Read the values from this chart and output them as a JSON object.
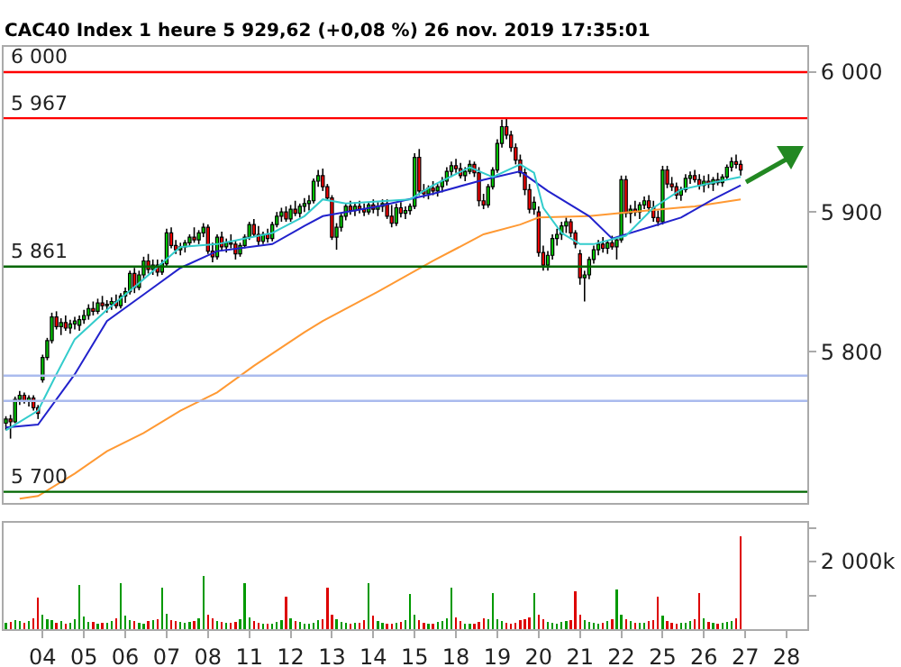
{
  "chart_data": [
    {
      "type": "candlestick",
      "title": "CAC40 Index 1 heure 5 929,62 (+0,08 %) 26 nov. 2019 17:35:01",
      "categories": [
        null,
        null,
        null,
        null,
        null,
        null,
        null,
        null,
        "04",
        null,
        null,
        null,
        null,
        null,
        null,
        null,
        null,
        "05",
        null,
        null,
        null,
        null,
        null,
        null,
        null,
        null,
        "06",
        null,
        null,
        null,
        null,
        null,
        null,
        null,
        null,
        "07",
        null,
        null,
        null,
        null,
        null,
        null,
        null,
        null,
        "08",
        null,
        null,
        null,
        null,
        null,
        null,
        null,
        null,
        "11",
        null,
        null,
        null,
        null,
        null,
        null,
        null,
        null,
        "12",
        null,
        null,
        null,
        null,
        null,
        null,
        null,
        null,
        "13",
        null,
        null,
        null,
        null,
        null,
        null,
        null,
        null,
        "14",
        null,
        null,
        null,
        null,
        null,
        null,
        null,
        null,
        "15",
        null,
        null,
        null,
        null,
        null,
        null,
        null,
        null,
        "18",
        null,
        null,
        null,
        null,
        null,
        null,
        null,
        null,
        "19",
        null,
        null,
        null,
        null,
        null,
        null,
        null,
        null,
        "20",
        null,
        null,
        null,
        null,
        null,
        null,
        null,
        null,
        "21",
        null,
        null,
        null,
        null,
        null,
        null,
        null,
        null,
        "22",
        null,
        null,
        null,
        null,
        null,
        null,
        null,
        null,
        "25",
        null,
        null,
        null,
        null,
        null,
        null,
        null,
        null,
        "26",
        null,
        null,
        null,
        null,
        null,
        null,
        null,
        null,
        "27",
        null,
        null,
        null,
        null,
        null,
        null,
        null,
        null,
        "28",
        null,
        null,
        null,
        null
      ],
      "ohlc": [
        [
          5749,
          5754,
          5744,
          5752
        ],
        [
          5752,
          5755,
          5738,
          5750
        ],
        [
          5750,
          5768,
          5749,
          5766
        ],
        [
          5766,
          5772,
          5762,
          5769
        ],
        [
          5769,
          5771,
          5763,
          5765
        ],
        [
          5765,
          5769,
          5761,
          5767
        ],
        [
          5767,
          5769,
          5758,
          5760
        ],
        [
          5760,
          5762,
          5752,
          5756
        ],
        [
          5780,
          5798,
          5778,
          5796
        ],
        [
          5796,
          5810,
          5794,
          5808
        ],
        [
          5808,
          5828,
          5806,
          5825
        ],
        [
          5825,
          5829,
          5816,
          5818
        ],
        [
          5818,
          5824,
          5812,
          5821
        ],
        [
          5821,
          5826,
          5815,
          5817
        ],
        [
          5817,
          5823,
          5813,
          5820
        ],
        [
          5820,
          5825,
          5816,
          5822
        ],
        [
          5819,
          5826,
          5815,
          5823
        ],
        [
          5823,
          5830,
          5820,
          5826
        ],
        [
          5826,
          5834,
          5823,
          5831
        ],
        [
          5831,
          5836,
          5826,
          5829
        ],
        [
          5829,
          5838,
          5827,
          5835
        ],
        [
          5835,
          5840,
          5830,
          5833
        ],
        [
          5833,
          5837,
          5828,
          5834
        ],
        [
          5834,
          5839,
          5830,
          5836
        ],
        [
          5836,
          5841,
          5831,
          5833
        ],
        [
          5833,
          5842,
          5831,
          5840
        ],
        [
          5840,
          5846,
          5835,
          5843
        ],
        [
          5843,
          5858,
          5841,
          5856
        ],
        [
          5856,
          5860,
          5842,
          5846
        ],
        [
          5846,
          5858,
          5844,
          5855
        ],
        [
          5855,
          5868,
          5852,
          5865
        ],
        [
          5865,
          5870,
          5856,
          5859
        ],
        [
          5859,
          5866,
          5855,
          5862
        ],
        [
          5862,
          5866,
          5854,
          5857
        ],
        [
          5857,
          5866,
          5855,
          5863
        ],
        [
          5863,
          5888,
          5861,
          5885
        ],
        [
          5885,
          5889,
          5874,
          5876
        ],
        [
          5876,
          5880,
          5870,
          5873
        ],
        [
          5873,
          5878,
          5869,
          5875
        ],
        [
          5875,
          5880,
          5871,
          5878
        ],
        [
          5878,
          5884,
          5875,
          5882
        ],
        [
          5882,
          5889,
          5878,
          5880
        ],
        [
          5880,
          5887,
          5877,
          5885
        ],
        [
          5885,
          5892,
          5882,
          5889
        ],
        [
          5889,
          5891,
          5870,
          5872
        ],
        [
          5872,
          5878,
          5864,
          5868
        ],
        [
          5868,
          5884,
          5866,
          5882
        ],
        [
          5882,
          5886,
          5872,
          5875
        ],
        [
          5875,
          5881,
          5871,
          5878
        ],
        [
          5878,
          5884,
          5874,
          5877
        ],
        [
          5877,
          5880,
          5866,
          5870
        ],
        [
          5870,
          5878,
          5868,
          5876
        ],
        [
          5876,
          5884,
          5874,
          5882
        ],
        [
          5882,
          5893,
          5880,
          5891
        ],
        [
          5891,
          5895,
          5882,
          5884
        ],
        [
          5884,
          5890,
          5876,
          5879
        ],
        [
          5879,
          5886,
          5877,
          5884
        ],
        [
          5884,
          5888,
          5878,
          5881
        ],
        [
          5881,
          5893,
          5879,
          5891
        ],
        [
          5891,
          5900,
          5889,
          5897
        ],
        [
          5897,
          5903,
          5893,
          5900
        ],
        [
          5900,
          5904,
          5893,
          5895
        ],
        [
          5895,
          5905,
          5893,
          5902
        ],
        [
          5902,
          5908,
          5897,
          5899
        ],
        [
          5899,
          5906,
          5896,
          5904
        ],
        [
          5904,
          5910,
          5900,
          5906
        ],
        [
          5906,
          5912,
          5901,
          5908
        ],
        [
          5908,
          5924,
          5906,
          5922
        ],
        [
          5922,
          5930,
          5918,
          5926
        ],
        [
          5926,
          5931,
          5915,
          5918
        ],
        [
          5918,
          5920,
          5908,
          5910
        ],
        [
          5910,
          5912,
          5880,
          5882
        ],
        [
          5882,
          5892,
          5873,
          5889
        ],
        [
          5889,
          5899,
          5886,
          5897
        ],
        [
          5897,
          5906,
          5894,
          5904
        ],
        [
          5904,
          5908,
          5898,
          5901
        ],
        [
          5901,
          5907,
          5897,
          5904
        ],
        [
          5904,
          5908,
          5899,
          5902
        ],
        [
          5902,
          5906,
          5897,
          5900
        ],
        [
          5900,
          5907,
          5898,
          5905
        ],
        [
          5905,
          5909,
          5899,
          5902
        ],
        [
          5902,
          5907,
          5897,
          5904
        ],
        [
          5904,
          5909,
          5900,
          5906
        ],
        [
          5906,
          5909,
          5895,
          5897
        ],
        [
          5897,
          5905,
          5889,
          5892
        ],
        [
          5892,
          5906,
          5890,
          5903
        ],
        [
          5903,
          5907,
          5896,
          5899
        ],
        [
          5899,
          5904,
          5895,
          5901
        ],
        [
          5901,
          5906,
          5898,
          5904
        ],
        [
          5904,
          5942,
          5902,
          5939
        ],
        [
          5939,
          5945,
          5912,
          5915
        ],
        [
          5915,
          5920,
          5910,
          5913
        ],
        [
          5913,
          5919,
          5909,
          5917
        ],
        [
          5917,
          5922,
          5912,
          5915
        ],
        [
          5915,
          5920,
          5911,
          5918
        ],
        [
          5918,
          5925,
          5914,
          5922
        ],
        [
          5922,
          5932,
          5919,
          5929
        ],
        [
          5929,
          5936,
          5925,
          5933
        ],
        [
          5933,
          5938,
          5928,
          5931
        ],
        [
          5931,
          5935,
          5924,
          5926
        ],
        [
          5926,
          5932,
          5922,
          5929
        ],
        [
          5929,
          5937,
          5927,
          5934
        ],
        [
          5934,
          5936,
          5925,
          5928
        ],
        [
          5928,
          5932,
          5904,
          5908
        ],
        [
          5908,
          5913,
          5902,
          5905
        ],
        [
          5905,
          5920,
          5903,
          5918
        ],
        [
          5918,
          5932,
          5916,
          5930
        ],
        [
          5930,
          5952,
          5928,
          5949
        ],
        [
          5949,
          5966,
          5946,
          5961
        ],
        [
          5961,
          5967,
          5952,
          5955
        ],
        [
          5955,
          5958,
          5943,
          5946
        ],
        [
          5946,
          5949,
          5934,
          5937
        ],
        [
          5937,
          5941,
          5925,
          5928
        ],
        [
          5928,
          5931,
          5912,
          5916
        ],
        [
          5916,
          5920,
          5899,
          5902
        ],
        [
          5902,
          5911,
          5898,
          5907
        ],
        [
          5900,
          5904,
          5868,
          5871
        ],
        [
          5871,
          5876,
          5858,
          5862
        ],
        [
          5862,
          5872,
          5858,
          5869
        ],
        [
          5869,
          5884,
          5866,
          5881
        ],
        [
          5881,
          5888,
          5876,
          5884
        ],
        [
          5884,
          5893,
          5880,
          5890
        ],
        [
          5890,
          5896,
          5885,
          5893
        ],
        [
          5893,
          5895,
          5882,
          5885
        ],
        [
          5885,
          5887,
          5874,
          5877
        ],
        [
          5870,
          5873,
          5848,
          5853
        ],
        [
          5853,
          5858,
          5836,
          5855
        ],
        [
          5855,
          5868,
          5852,
          5866
        ],
        [
          5866,
          5876,
          5863,
          5873
        ],
        [
          5873,
          5880,
          5869,
          5877
        ],
        [
          5877,
          5882,
          5871,
          5874
        ],
        [
          5874,
          5880,
          5870,
          5878
        ],
        [
          5878,
          5883,
          5873,
          5875
        ],
        [
          5875,
          5882,
          5866,
          5880
        ],
        [
          5880,
          5926,
          5878,
          5923
        ],
        [
          5923,
          5926,
          5896,
          5899
        ],
        [
          5899,
          5905,
          5892,
          5902
        ],
        [
          5902,
          5908,
          5897,
          5900
        ],
        [
          5900,
          5907,
          5895,
          5905
        ],
        [
          5905,
          5911,
          5902,
          5908
        ],
        [
          5908,
          5912,
          5900,
          5903
        ],
        [
          5903,
          5908,
          5893,
          5896
        ],
        [
          5896,
          5901,
          5890,
          5893
        ],
        [
          5893,
          5933,
          5891,
          5930
        ],
        [
          5930,
          5933,
          5917,
          5920
        ],
        [
          5920,
          5925,
          5915,
          5918
        ],
        [
          5918,
          5921,
          5909,
          5912
        ],
        [
          5912,
          5918,
          5908,
          5916
        ],
        [
          5916,
          5927,
          5914,
          5924
        ],
        [
          5924,
          5929,
          5920,
          5926
        ],
        [
          5926,
          5930,
          5921,
          5923
        ],
        [
          5923,
          5927,
          5916,
          5919
        ],
        [
          5919,
          5926,
          5914,
          5922
        ],
        [
          5922,
          5927,
          5917,
          5920
        ],
        [
          5920,
          5925,
          5915,
          5923
        ],
        [
          5923,
          5928,
          5919,
          5921
        ],
        [
          5921,
          5927,
          5918,
          5925
        ],
        [
          5925,
          5934,
          5923,
          5932
        ],
        [
          5932,
          5939,
          5929,
          5936
        ],
        [
          5936,
          5941,
          5931,
          5934
        ],
        [
          5934,
          5937,
          5926,
          5930
        ],
        null,
        null,
        null,
        null,
        null,
        null,
        null,
        null,
        null,
        null,
        null,
        null,
        null,
        null
      ],
      "series": [
        {
          "type": "line",
          "color": "#ff9933",
          "values": [
            null,
            null,
            null,
            5695,
            null,
            null,
            null,
            5697,
            null,
            null,
            null,
            null,
            null,
            null,
            null,
            5713,
            null,
            null,
            null,
            null,
            null,
            null,
            5729,
            null,
            null,
            null,
            null,
            null,
            null,
            null,
            5742,
            null,
            null,
            null,
            null,
            null,
            null,
            null,
            5758,
            null,
            null,
            null,
            null,
            null,
            null,
            null,
            5771,
            null,
            null,
            null,
            null,
            null,
            null,
            null,
            5790,
            null,
            null,
            null,
            null,
            null,
            null,
            null,
            null,
            null,
            null,
            5814,
            null,
            null,
            null,
            5822,
            null,
            null,
            null,
            null,
            null,
            null,
            null,
            null,
            null,
            null,
            null,
            5843,
            null,
            null,
            null,
            null,
            null,
            null,
            null,
            null,
            null,
            null,
            null,
            5865,
            null,
            null,
            null,
            null,
            null,
            null,
            null,
            null,
            null,
            null,
            5884,
            null,
            null,
            null,
            null,
            null,
            null,
            null,
            5891,
            null,
            null,
            null,
            5896,
            null,
            null,
            null,
            null,
            null,
            null,
            null,
            null,
            null,
            null,
            5897,
            null,
            null,
            null,
            null,
            null,
            null,
            null,
            null,
            5900,
            null,
            null,
            null,
            null,
            null,
            null,
            null,
            null,
            null,
            null,
            null,
            null,
            null,
            5904,
            null,
            null,
            null,
            null,
            null,
            null,
            null,
            null,
            null,
            5909,
            null,
            null,
            null,
            null,
            null,
            null,
            null,
            null,
            null,
            null,
            null,
            null,
            null,
            null
          ]
        },
        {
          "type": "line",
          "color": "#2222cc",
          "values": [
            5746,
            null,
            null,
            null,
            null,
            null,
            null,
            5748,
            null,
            null,
            null,
            null,
            null,
            null,
            null,
            5784,
            null,
            null,
            null,
            null,
            null,
            null,
            5822,
            null,
            null,
            null,
            null,
            null,
            null,
            null,
            5841,
            null,
            null,
            null,
            null,
            null,
            null,
            null,
            5860,
            null,
            null,
            null,
            null,
            null,
            null,
            null,
            5872,
            null,
            null,
            null,
            null,
            null,
            null,
            null,
            null,
            null,
            null,
            null,
            5877,
            null,
            null,
            null,
            null,
            null,
            null,
            5890,
            null,
            null,
            null,
            5897,
            null,
            null,
            null,
            null,
            null,
            null,
            null,
            null,
            null,
            null,
            null,
            5904,
            null,
            null,
            null,
            null,
            null,
            null,
            null,
            null,
            null,
            null,
            null,
            5913,
            null,
            null,
            null,
            null,
            null,
            null,
            null,
            null,
            null,
            null,
            5923,
            null,
            null,
            null,
            null,
            null,
            null,
            null,
            5929,
            null,
            null,
            null,
            null,
            null,
            5915,
            null,
            null,
            null,
            null,
            null,
            null,
            null,
            null,
            5897,
            null,
            null,
            null,
            null,
            5881,
            null,
            null,
            null,
            null,
            null,
            null,
            null,
            null,
            5890,
            null,
            null,
            null,
            null,
            null,
            5896,
            null,
            null,
            null,
            null,
            null,
            null,
            5909,
            null,
            null,
            null,
            null,
            null,
            5919,
            null,
            null,
            null,
            null,
            null,
            null,
            null,
            null,
            null,
            null,
            null,
            null,
            null,
            null
          ]
        },
        {
          "type": "line",
          "color": "#33cccc",
          "values": [
            5744,
            null,
            null,
            null,
            null,
            null,
            null,
            5758,
            null,
            null,
            null,
            5784,
            null,
            null,
            null,
            5809,
            null,
            null,
            null,
            null,
            null,
            null,
            5830,
            null,
            null,
            null,
            null,
            null,
            null,
            null,
            5852,
            null,
            null,
            null,
            null,
            null,
            null,
            null,
            5875,
            null,
            null,
            null,
            null,
            null,
            null,
            null,
            5877,
            null,
            null,
            null,
            null,
            null,
            null,
            null,
            null,
            null,
            null,
            null,
            5885,
            null,
            null,
            null,
            null,
            null,
            null,
            5897,
            null,
            null,
            null,
            5909,
            null,
            null,
            null,
            null,
            5906,
            null,
            null,
            null,
            null,
            null,
            null,
            null,
            null,
            null,
            null,
            null,
            null,
            null,
            5909,
            null,
            null,
            null,
            null,
            5919,
            null,
            null,
            null,
            null,
            null,
            null,
            null,
            5932,
            null,
            null,
            null,
            null,
            5925,
            null,
            null,
            null,
            null,
            null,
            5934,
            null,
            null,
            5928,
            null,
            5903,
            null,
            null,
            null,
            5885,
            null,
            null,
            null,
            5877,
            null,
            null,
            5877,
            null,
            null,
            null,
            null,
            null,
            null,
            5883,
            null,
            null,
            null,
            null,
            null,
            5903,
            null,
            null,
            null,
            null,
            null,
            5916,
            null,
            null,
            null,
            null,
            null,
            null,
            5921,
            null,
            null,
            null,
            null,
            null,
            5925,
            null,
            null,
            null,
            null,
            null,
            null,
            null,
            null,
            null,
            null,
            null,
            null,
            null,
            null
          ]
        }
      ],
      "ref_lines": [
        {
          "axis": "y",
          "value": 6000,
          "label": "6 000",
          "color": "#ff0000"
        },
        {
          "axis": "y",
          "value": 5967,
          "label": "5 967",
          "color": "#ff0000"
        },
        {
          "axis": "y",
          "value": 5861,
          "label": "5 861",
          "color": "#006600"
        },
        {
          "axis": "y",
          "value": 5783,
          "label": null,
          "color": "#aabbee"
        },
        {
          "axis": "y",
          "value": 5765,
          "label": null,
          "color": "#aabbee"
        },
        {
          "axis": "y",
          "value": 5700,
          "label": "5 700",
          "color": "#006600"
        }
      ],
      "ylim": [
        5692,
        6018
      ],
      "yticks": [
        {
          "value": 5800,
          "label": "5 800"
        },
        {
          "value": 5900,
          "label": "5 900"
        },
        {
          "value": 6000,
          "label": "6 000"
        }
      ],
      "tick_labels": "y"
    },
    {
      "type": "bar",
      "categories": [
        null,
        null,
        null,
        null,
        null,
        null,
        null,
        null,
        "04",
        null,
        null,
        null,
        null,
        null,
        null,
        null,
        null,
        "05",
        null,
        null,
        null,
        null,
        null,
        null,
        null,
        null,
        "06",
        null,
        null,
        null,
        null,
        null,
        null,
        null,
        null,
        "07",
        null,
        null,
        null,
        null,
        null,
        null,
        null,
        null,
        "08",
        null,
        null,
        null,
        null,
        null,
        null,
        null,
        null,
        "11",
        null,
        null,
        null,
        null,
        null,
        null,
        null,
        null,
        "12",
        null,
        null,
        null,
        null,
        null,
        null,
        null,
        null,
        "13",
        null,
        null,
        null,
        null,
        null,
        null,
        null,
        null,
        "14",
        null,
        null,
        null,
        null,
        null,
        null,
        null,
        null,
        "15",
        null,
        null,
        null,
        null,
        null,
        null,
        null,
        null,
        "18",
        null,
        null,
        null,
        null,
        null,
        null,
        null,
        null,
        "19",
        null,
        null,
        null,
        null,
        null,
        null,
        null,
        null,
        "20",
        null,
        null,
        null,
        null,
        null,
        null,
        null,
        null,
        "21",
        null,
        null,
        null,
        null,
        null,
        null,
        null,
        null,
        "22",
        null,
        null,
        null,
        null,
        null,
        null,
        null,
        null,
        "25",
        null,
        null,
        null,
        null,
        null,
        null,
        null,
        null,
        "26",
        null,
        null,
        null,
        null,
        null,
        null,
        null,
        null,
        "27",
        null,
        null,
        null,
        null,
        null,
        null,
        null,
        null,
        "28",
        null,
        null,
        null,
        null
      ],
      "values": [
        180,
        210,
        260,
        240,
        200,
        230,
        310,
        940,
        420,
        300,
        260,
        190,
        230,
        170,
        200,
        290,
        1300,
        380,
        220,
        210,
        170,
        180,
        200,
        240,
        330,
        1350,
        400,
        260,
        230,
        190,
        170,
        250,
        280,
        300,
        1240,
        450,
        280,
        250,
        220,
        200,
        210,
        230,
        320,
        1570,
        420,
        310,
        240,
        220,
        190,
        200,
        210,
        290,
        1350,
        360,
        240,
        200,
        150,
        160,
        150,
        210,
        260,
        970,
        330,
        230,
        210,
        170,
        170,
        190,
        260,
        300,
        1240,
        420,
        300,
        220,
        190,
        160,
        180,
        200,
        260,
        1350,
        400,
        250,
        200,
        150,
        160,
        190,
        220,
        270,
        1030,
        420,
        260,
        190,
        170,
        170,
        220,
        240,
        310,
        1240,
        350,
        230,
        170,
        170,
        160,
        220,
        330,
        290,
        1060,
        300,
        240,
        180,
        160,
        190,
        260,
        290,
        340,
        1060,
        430,
        300,
        220,
        190,
        150,
        220,
        240,
        280,
        1110,
        430,
        260,
        210,
        180,
        170,
        200,
        230,
        300,
        1170,
        440,
        290,
        230,
        180,
        200,
        190,
        230,
        280,
        970,
        400,
        240,
        200,
        170,
        180,
        180,
        230,
        290,
        1060,
        330,
        210,
        190,
        170,
        180,
        210,
        250,
        320,
        2750,
        null,
        null,
        null,
        null,
        null,
        null,
        null,
        null,
        null,
        null,
        null,
        null,
        null,
        null
      ],
      "colors": [
        "#009900",
        "#dd0000",
        "#009900",
        "#009900",
        "#dd0000",
        "#009900",
        "#dd0000",
        "#dd0000",
        "#009900",
        "#009900",
        "#009900",
        "#dd0000",
        "#009900",
        "#dd0000",
        "#009900",
        "#009900",
        "#009900",
        "#009900",
        "#009900",
        "#dd0000",
        "#009900",
        "#dd0000",
        "#009900",
        "#009900",
        "#dd0000",
        "#009900",
        "#009900",
        "#009900",
        "#dd0000",
        "#009900",
        "#009900",
        "#dd0000",
        "#009900",
        "#dd0000",
        "#009900",
        "#009900",
        "#dd0000",
        "#dd0000",
        "#009900",
        "#009900",
        "#009900",
        "#dd0000",
        "#009900",
        "#009900",
        "#dd0000",
        "#dd0000",
        "#009900",
        "#dd0000",
        "#009900",
        "#dd0000",
        "#dd0000",
        "#009900",
        "#009900",
        "#009900",
        "#dd0000",
        "#dd0000",
        "#009900",
        "#dd0000",
        "#009900",
        "#009900",
        "#009900",
        "#dd0000",
        "#009900",
        "#dd0000",
        "#009900",
        "#009900",
        "#009900",
        "#009900",
        "#009900",
        "#dd0000",
        "#dd0000",
        "#dd0000",
        "#009900",
        "#009900",
        "#009900",
        "#dd0000",
        "#009900",
        "#dd0000",
        "#dd0000",
        "#009900",
        "#dd0000",
        "#009900",
        "#009900",
        "#dd0000",
        "#dd0000",
        "#009900",
        "#dd0000",
        "#009900",
        "#009900",
        "#009900",
        "#dd0000",
        "#dd0000",
        "#009900",
        "#dd0000",
        "#009900",
        "#009900",
        "#009900",
        "#009900",
        "#dd0000",
        "#dd0000",
        "#009900",
        "#009900",
        "#dd0000",
        "#dd0000",
        "#dd0000",
        "#009900",
        "#009900",
        "#009900",
        "#009900",
        "#dd0000",
        "#dd0000",
        "#dd0000",
        "#dd0000",
        "#dd0000",
        "#dd0000",
        "#009900",
        "#dd0000",
        "#dd0000",
        "#009900",
        "#009900",
        "#009900",
        "#009900",
        "#009900",
        "#dd0000",
        "#dd0000",
        "#dd0000",
        "#009900",
        "#009900",
        "#009900",
        "#009900",
        "#dd0000",
        "#009900",
        "#dd0000",
        "#009900",
        "#009900",
        "#dd0000",
        "#009900",
        "#dd0000",
        "#009900",
        "#009900",
        "#dd0000",
        "#dd0000",
        "#dd0000",
        "#009900",
        "#dd0000",
        "#dd0000",
        "#dd0000",
        "#009900",
        "#009900",
        "#009900",
        "#dd0000",
        "#dd0000",
        "#009900",
        "#dd0000",
        "#009900",
        "#dd0000",
        "#009900",
        "#009900",
        "#009900",
        "#dd0000",
        "#dd0000",
        null,
        null,
        null,
        null,
        null,
        null,
        null,
        null,
        null,
        null,
        null,
        null,
        null,
        null
      ],
      "ylim": [
        0,
        3150
      ],
      "yticks": [
        {
          "value": 1000,
          "label": null
        },
        {
          "value": 2000,
          "label": "2 000k"
        },
        {
          "value": 3000,
          "label": null
        }
      ]
    }
  ]
}
